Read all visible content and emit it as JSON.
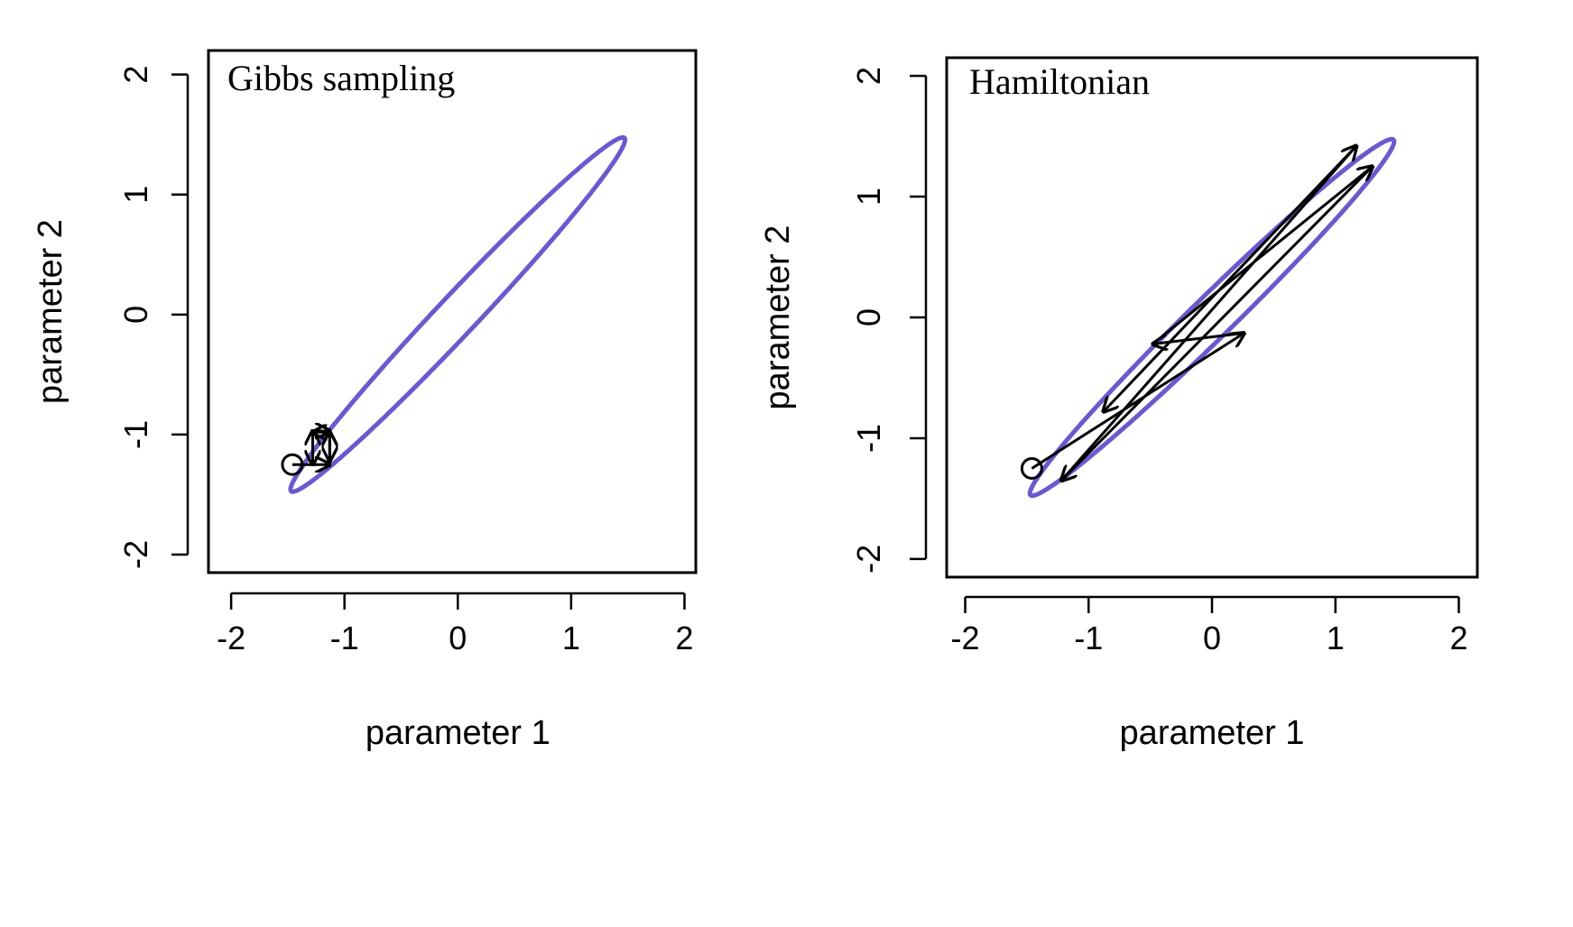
{
  "chart_data": [
    {
      "type": "line",
      "title": "Gibbs sampling",
      "xlabel": "parameter 1",
      "ylabel": "parameter 2",
      "xlim": [
        -2.2,
        2.1
      ],
      "ylim": [
        -2.15,
        2.2
      ],
      "xticks": [
        -2,
        -1,
        0,
        1,
        2
      ],
      "yticks": [
        -2,
        -1,
        0,
        1,
        2
      ],
      "grid": false,
      "contour_color": "#6a5acd",
      "contour": {
        "type": "ellipse",
        "center": [
          0,
          0
        ],
        "semi_major": 2.08,
        "semi_minor": 0.17,
        "angle_deg": 45
      },
      "start_point": [
        -1.46,
        -1.25
      ],
      "path": [
        [
          -1.46,
          -1.25
        ],
        [
          -1.13,
          -1.25
        ],
        [
          -1.13,
          -0.98
        ],
        [
          -1.28,
          -0.98
        ],
        [
          -1.28,
          -1.25
        ],
        [
          -1.28,
          -0.97
        ],
        [
          -1.13,
          -0.97
        ],
        [
          -1.13,
          -1.22
        ],
        [
          -1.13,
          -0.98
        ]
      ]
    },
    {
      "type": "line",
      "title": "Hamiltonian",
      "xlabel": "parameter 1",
      "ylabel": "parameter 2",
      "xlim": [
        -2.15,
        2.15
      ],
      "ylim": [
        -2.15,
        2.15
      ],
      "xticks": [
        -2,
        -1,
        0,
        1,
        2
      ],
      "yticks": [
        -2,
        -1,
        0,
        1,
        2
      ],
      "grid": false,
      "contour_color": "#6a5acd",
      "contour": {
        "type": "ellipse",
        "center": [
          0,
          0
        ],
        "semi_major": 2.08,
        "semi_minor": 0.17,
        "angle_deg": 45
      },
      "start_point": [
        -1.46,
        -1.25
      ],
      "path": [
        [
          -1.46,
          -1.25
        ],
        [
          0.26,
          -0.13
        ],
        [
          -0.48,
          -0.22
        ],
        [
          1.3,
          1.25
        ],
        [
          -1.22,
          -1.35
        ],
        [
          1.17,
          1.42
        ],
        [
          -0.88,
          -0.78
        ]
      ]
    }
  ]
}
